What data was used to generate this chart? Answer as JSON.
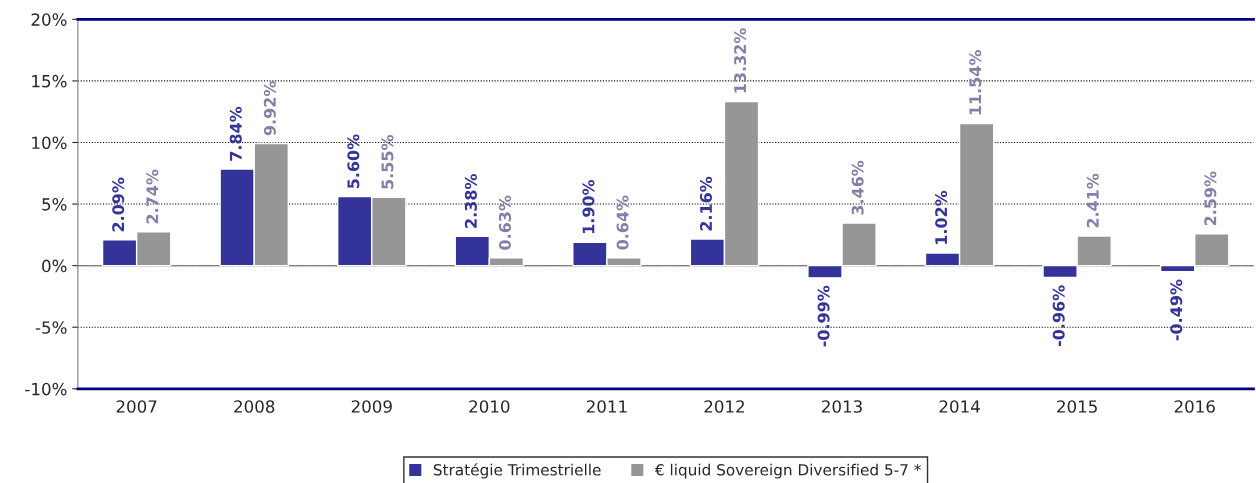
{
  "chart_data": {
    "type": "bar",
    "categories": [
      "2007",
      "2008",
      "2009",
      "2010",
      "2011",
      "2012",
      "2013",
      "2014",
      "2015",
      "2016"
    ],
    "series": [
      {
        "name": "Stratégie Trimestrielle",
        "color": "#333399",
        "values": [
          2.09,
          7.84,
          5.6,
          2.38,
          1.9,
          2.16,
          -0.99,
          1.02,
          -0.96,
          -0.49
        ],
        "value_labels": [
          "2.09%",
          "7.84%",
          "5.60%",
          "2.38%",
          "1.90%",
          "2.16%",
          "-0.99%",
          "1.02%",
          "-0.96%",
          "-0.49%"
        ]
      },
      {
        "name": "€ liquid Sovereign Diversified 5-7 *",
        "color": "#969696",
        "values": [
          2.74,
          9.92,
          5.55,
          0.63,
          0.64,
          13.32,
          3.46,
          11.54,
          2.41,
          2.59
        ],
        "value_labels": [
          "2.74%",
          "9.92%",
          "5.55%",
          "0.63%",
          "0.64%",
          "13.32%",
          "3.46%",
          "11.54%",
          "2.41%",
          "2.59%"
        ]
      }
    ],
    "ylim": [
      -10,
      20
    ],
    "yticks": [
      {
        "value": -10,
        "label": "-10%"
      },
      {
        "value": -5,
        "label": "-5%"
      },
      {
        "value": 0,
        "label": "0%"
      },
      {
        "value": 5,
        "label": "5%"
      },
      {
        "value": 10,
        "label": "10%"
      },
      {
        "value": 15,
        "label": "15%"
      },
      {
        "value": 20,
        "label": "20%"
      }
    ],
    "grid": "y",
    "legend": "bottom"
  }
}
